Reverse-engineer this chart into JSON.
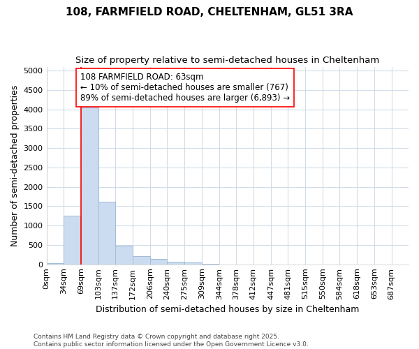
{
  "title_line1": "108, FARMFIELD ROAD, CHELTENHAM, GL51 3RA",
  "title_line2": "Size of property relative to semi-detached houses in Cheltenham",
  "xlabel": "Distribution of semi-detached houses by size in Cheltenham",
  "ylabel": "Number of semi-detached properties",
  "bin_labels": [
    "0sqm",
    "34sqm",
    "69sqm",
    "103sqm",
    "137sqm",
    "172sqm",
    "206sqm",
    "240sqm",
    "275sqm",
    "309sqm",
    "344sqm",
    "378sqm",
    "412sqm",
    "447sqm",
    "481sqm",
    "515sqm",
    "550sqm",
    "584sqm",
    "618sqm",
    "653sqm",
    "687sqm"
  ],
  "bin_edges": [
    0,
    34,
    69,
    103,
    137,
    172,
    206,
    240,
    275,
    309,
    344,
    378,
    412,
    447,
    481,
    515,
    550,
    584,
    618,
    653,
    687
  ],
  "bar_heights": [
    30,
    1250,
    4050,
    1620,
    480,
    215,
    130,
    75,
    50,
    10,
    0,
    0,
    0,
    0,
    0,
    0,
    0,
    0,
    0,
    0
  ],
  "bar_color": "#ccdcf0",
  "bar_edge_color": "#a0bcd8",
  "property_line_x": 69,
  "property_line_color": "red",
  "annotation_line1": "108 FARMFIELD ROAD: 63sqm",
  "annotation_line2": "← 10% of semi-detached houses are smaller (767)",
  "annotation_line3": "89% of semi-detached houses are larger (6,893) →",
  "annotation_box_color": "white",
  "annotation_box_edge_color": "red",
  "ylim": [
    0,
    5100
  ],
  "yticks": [
    0,
    500,
    1000,
    1500,
    2000,
    2500,
    3000,
    3500,
    4000,
    4500,
    5000
  ],
  "background_color": "#ffffff",
  "plot_bg_color": "#ffffff",
  "grid_color": "#d0dce8",
  "footnote": "Contains HM Land Registry data © Crown copyright and database right 2025.\nContains public sector information licensed under the Open Government Licence v3.0.",
  "title_fontsize": 11,
  "subtitle_fontsize": 9.5,
  "axis_label_fontsize": 9,
  "tick_fontsize": 8,
  "annotation_fontsize": 8.5,
  "footnote_fontsize": 6.5
}
